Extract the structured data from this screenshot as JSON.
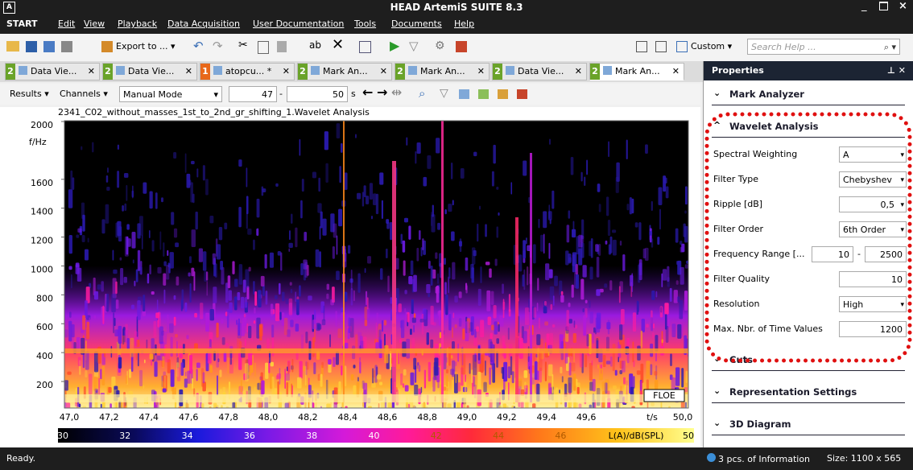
{
  "window": {
    "title": "HEAD ArtemiS SUITE 8.3"
  },
  "menu": [
    "START",
    "Edit",
    "View",
    "Playback",
    "Data Acquisition",
    "User Documentation",
    "Tools",
    "Documents",
    "Help"
  ],
  "toolbar": {
    "export": "Export to ...",
    "view_mode": "Custom",
    "search_placeholder": "Search Help ..."
  },
  "tabs": [
    {
      "badge": "2",
      "label": "Data Vie..."
    },
    {
      "badge": "2",
      "label": "Data Vie..."
    },
    {
      "badge": "1",
      "label": "atopcu... *"
    },
    {
      "badge": "2",
      "label": "Mark An..."
    },
    {
      "badge": "2",
      "label": "Mark An..."
    },
    {
      "badge": "2",
      "label": "Data Vie..."
    },
    {
      "badge": "2",
      "label": "Mark An..."
    }
  ],
  "analysis_toolbar": {
    "results": "Results",
    "channels": "Channels",
    "mode": "Manual Mode",
    "from": "47",
    "to": "50",
    "unit": "s"
  },
  "plot": {
    "title": "2341_C02_without_masses_1st_to_2nd_gr_shifting_1.Wavelet Analysis",
    "y_unit": "f/Hz",
    "y_ticks": [
      2000,
      1600,
      1400,
      1200,
      1000,
      800,
      600,
      400,
      200
    ],
    "x_ticks": [
      "47,0",
      "47,2",
      "47,4",
      "47,6",
      "47,8",
      "48,0",
      "48,2",
      "48,4",
      "48,6",
      "48,8",
      "49,0",
      "49,2",
      "49,4",
      "49,6"
    ],
    "x_unit": "t/s",
    "x_end": "50,0",
    "label": "FLOE",
    "colorbar_ticks": [
      "30",
      "32",
      "34",
      "36",
      "38",
      "40",
      "42",
      "44",
      "46"
    ],
    "colorbar_unit": "L(A)/dB(SPL)",
    "colorbar_end": "50"
  },
  "properties": {
    "title": "Properties",
    "sections": [
      "Mark Analyzer",
      "Wavelet Analysis",
      "Cuts",
      "Representation Settings",
      "3D Diagram"
    ],
    "rows": [
      {
        "label": "Spectral Weighting",
        "value": "A"
      },
      {
        "label": "Filter Type",
        "value": "Chebyshev"
      },
      {
        "label": "Ripple [dB]",
        "value": "0,5"
      },
      {
        "label": "Filter Order",
        "value": "6th Order"
      },
      {
        "label": "Frequency Range [...",
        "value": "10",
        "value2": "2500"
      },
      {
        "label": "Filter Quality",
        "value": "10"
      },
      {
        "label": "Resolution",
        "value": "High"
      },
      {
        "label": "Max. Nbr. of Time Values",
        "value": "1200"
      }
    ]
  },
  "status": {
    "text": "Ready.",
    "info": "3 pcs. of Information",
    "size": "Size: 1100 x 565"
  }
}
